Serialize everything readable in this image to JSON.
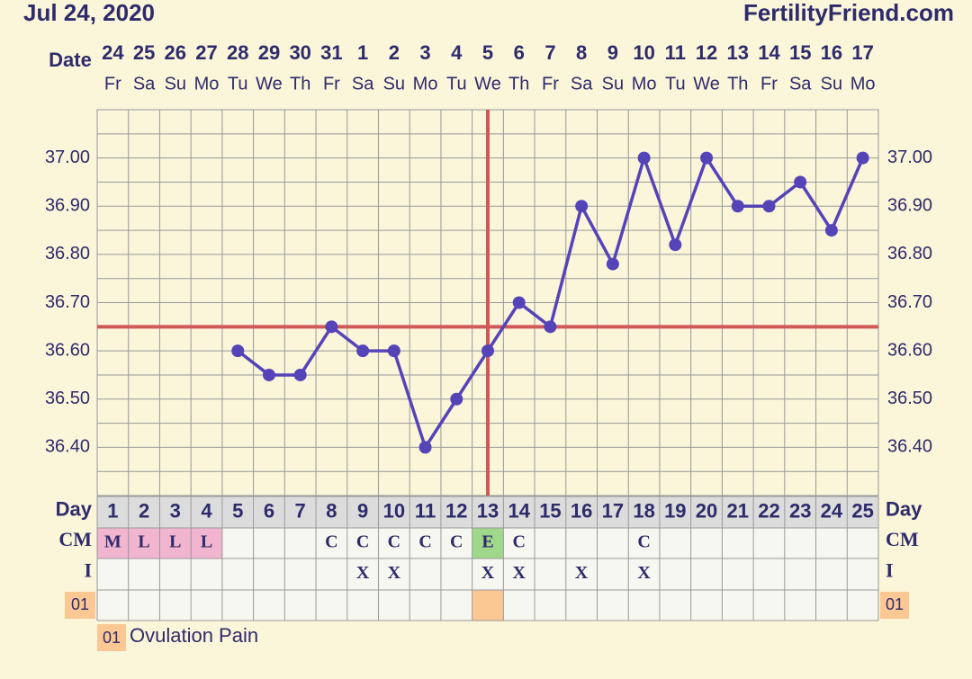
{
  "header": {
    "date": "Jul 24, 2020",
    "site": "FertilityFriend.com"
  },
  "chart_data": {
    "type": "line",
    "x_label": "Date",
    "categories": [
      "24",
      "25",
      "26",
      "27",
      "28",
      "29",
      "30",
      "31",
      "1",
      "2",
      "3",
      "4",
      "5",
      "6",
      "7",
      "8",
      "9",
      "10",
      "11",
      "12",
      "13",
      "14",
      "15",
      "16",
      "17"
    ],
    "weekdays": [
      "Fr",
      "Sa",
      "Su",
      "Mo",
      "Tu",
      "We",
      "Th",
      "Fr",
      "Sa",
      "Su",
      "Mo",
      "Tu",
      "We",
      "Th",
      "Fr",
      "Sa",
      "Su",
      "Mo",
      "Tu",
      "We",
      "Th",
      "Fr",
      "Sa",
      "Su",
      "Mo"
    ],
    "values": [
      null,
      null,
      null,
      null,
      36.6,
      36.55,
      36.55,
      36.65,
      36.6,
      36.6,
      36.4,
      36.5,
      36.6,
      36.7,
      36.65,
      36.9,
      36.78,
      37.0,
      36.82,
      37.0,
      36.9,
      36.9,
      36.95,
      36.85,
      37.0
    ],
    "color": "#5543b8",
    "ylim": [
      36.3,
      37.1
    ],
    "yticks": [
      {
        "value": 36.4,
        "label": "36.40"
      },
      {
        "value": 36.5,
        "label": "36.50"
      },
      {
        "value": 36.6,
        "label": "36.60"
      },
      {
        "value": 36.7,
        "label": "36.70"
      },
      {
        "value": 36.8,
        "label": "36.80"
      },
      {
        "value": 36.9,
        "label": "36.90"
      },
      {
        "value": 37.0,
        "label": "37.00"
      }
    ],
    "grid": true,
    "coverline": 36.65,
    "ovulation_day": 13,
    "marker_color": "#d05858"
  },
  "table": {
    "day_label": "Day",
    "days": [
      1,
      2,
      3,
      4,
      5,
      6,
      7,
      8,
      9,
      10,
      11,
      12,
      13,
      14,
      15,
      16,
      17,
      18,
      19,
      20,
      21,
      22,
      23,
      24,
      25
    ],
    "cm": {
      "label": "CM",
      "cells": [
        "M",
        "L",
        "L",
        "L",
        null,
        null,
        null,
        "C",
        "C",
        "C",
        "C",
        "C",
        "E",
        "C",
        null,
        null,
        null,
        "C",
        null,
        null,
        null,
        null,
        null,
        null,
        null
      ],
      "colors": {
        "M": "#f1b5cf",
        "L": "#f1b5cf",
        "E": "#9fd88a"
      }
    },
    "intercourse": {
      "label": "I",
      "cells": [
        null,
        null,
        null,
        null,
        null,
        null,
        null,
        null,
        "X",
        "X",
        null,
        null,
        "X",
        "X",
        null,
        "X",
        null,
        "X",
        null,
        null,
        null,
        null,
        null,
        null,
        null
      ]
    },
    "pain": {
      "label": "01",
      "days": [
        13
      ],
      "color": "#fbc894"
    }
  },
  "legend": {
    "code": "01",
    "text": "Ovulation Pain"
  }
}
